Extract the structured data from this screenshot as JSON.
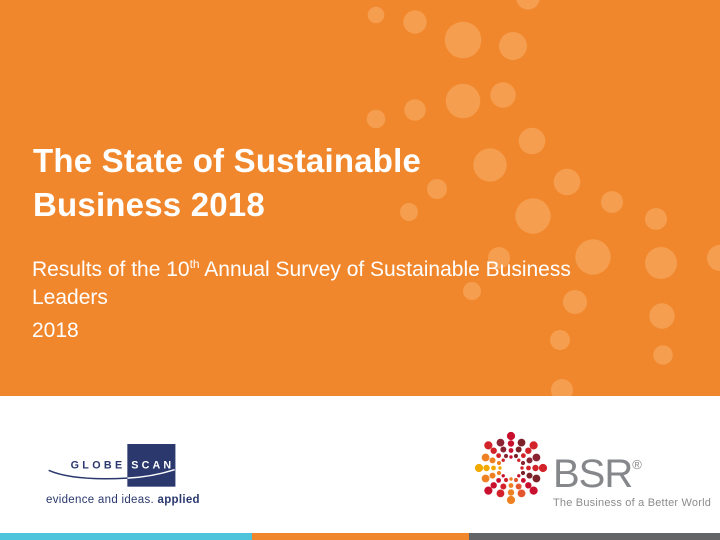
{
  "colors": {
    "orange_bg": "#F1872D",
    "orange_dot": "#F59E4F",
    "navy": "#2A386E",
    "bsr_gray": "#85878A",
    "bsr_tagline_gray": "#8A8C8E",
    "teal_bar": "#4EC3DC",
    "gray_bar": "#636466",
    "title_text": "#FFFFFF"
  },
  "hero": {
    "title_lines": [
      "The State of Sustainable",
      "Business 2018"
    ],
    "subtitle": {
      "prefix": "Results of the 10",
      "superscript": "th",
      "suffix": " Annual Survey of Sustainable Business Leaders",
      "year": "2018"
    }
  },
  "footer": {
    "globescan": {
      "name_left": "GLOBE",
      "name_right": "SCAN",
      "tagline_regular": "evidence and ideas. ",
      "tagline_bold": "applied"
    },
    "bsr": {
      "name": "BSR",
      "registered_mark": "®",
      "tagline": "The Business of a Better World"
    }
  }
}
